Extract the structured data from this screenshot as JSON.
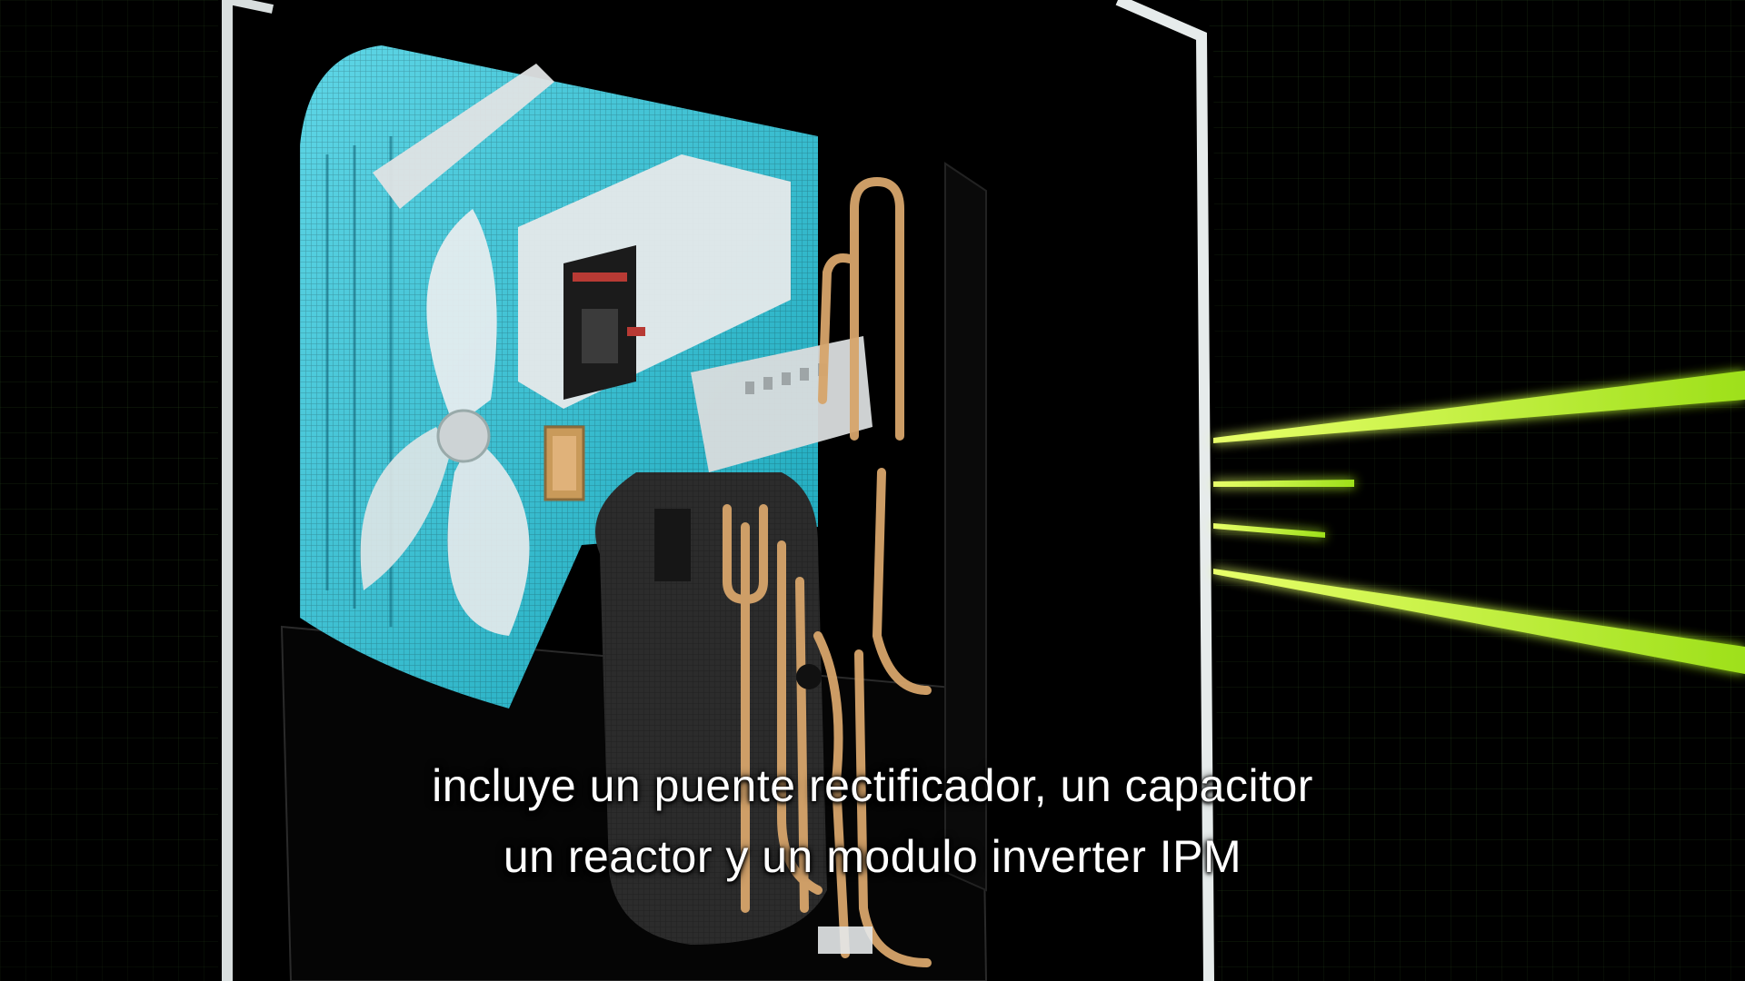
{
  "video": {
    "subtitle_lines": [
      "incluye un puente rectificador, un capacitor",
      "un reactor y un modulo inverter IPM"
    ]
  },
  "colors": {
    "background": "#000000",
    "grid": "#3c6a28",
    "coil_cyan": "#2ec4d6",
    "panel_frame": "#e8ecec",
    "light_beams": "#c8ff2a",
    "copper_pipes": "#d7a56b",
    "components_white": "#e9ecee"
  },
  "icons": {
    "illustration": "outdoor-ac-unit-cutaway"
  }
}
